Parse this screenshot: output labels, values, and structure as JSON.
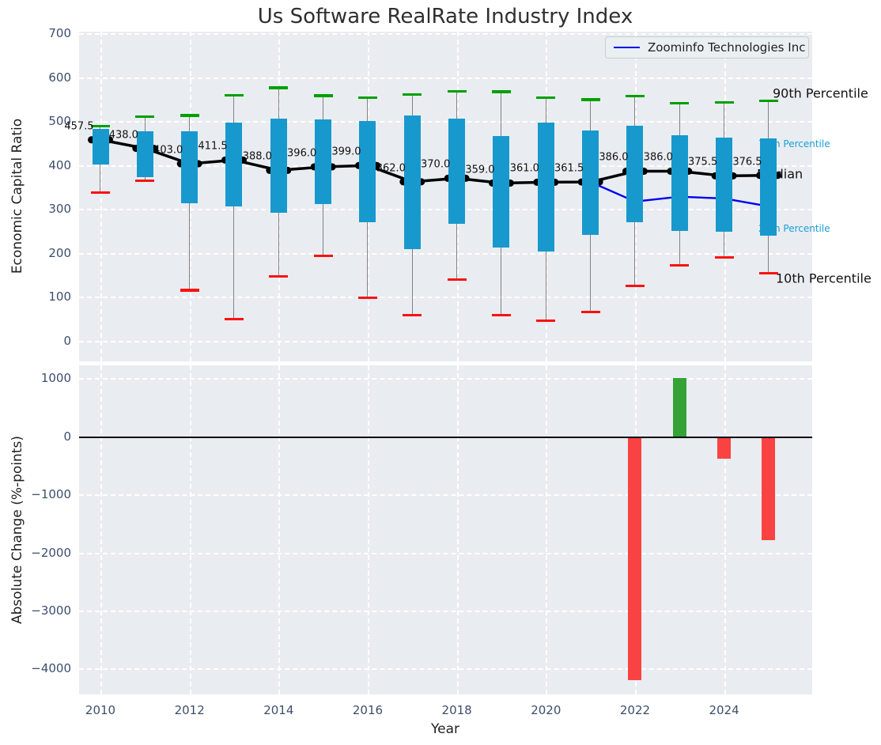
{
  "title": "Us Software RealRate Industry Index",
  "colors": {
    "plot_background": "#e9edf1",
    "gridline": "#ffffff",
    "tick_label": "#3d4e6c",
    "box_fill": "#1899cd",
    "p90_cap": "#00a000",
    "p10_cap": "#fb1111",
    "whisker": "#828282",
    "median_line": "#000000",
    "company_line": "#0000f0",
    "bar_positive": "#35a235",
    "bar_negative": "#f94342",
    "annotation_small": "#1a9fd6"
  },
  "legend": {
    "entries": [
      "Zoominfo Technologies Inc"
    ],
    "position": "upper right"
  },
  "chart_data": [
    {
      "type": "boxwhisker+line",
      "title": "Us Software RealRate Industry Index",
      "xlabel": "",
      "ylabel": "Economic Capital Ratio",
      "ylim": [
        0,
        700
      ],
      "yticks": [
        0,
        100,
        200,
        300,
        400,
        500,
        600,
        700
      ],
      "xticks": [
        2010,
        2012,
        2014,
        2016,
        2018,
        2020,
        2022,
        2024
      ],
      "grid": "dashed-white-on-gray",
      "years": [
        2010,
        2011,
        2012,
        2013,
        2014,
        2015,
        2016,
        2017,
        2018,
        2019,
        2020,
        2021,
        2022,
        2023,
        2024,
        2025
      ],
      "series": [
        {
          "name": "90th Percentile",
          "role": "whisker-high-cap",
          "values": [
            489,
            510,
            513,
            559,
            576,
            558,
            553,
            561,
            568,
            567,
            553,
            549,
            557,
            541,
            543,
            546
          ]
        },
        {
          "name": "75th Percentile",
          "role": "box-top",
          "values": [
            483,
            476,
            477,
            496,
            506,
            504,
            501,
            513,
            506,
            466,
            496,
            478,
            490,
            468,
            463,
            460
          ]
        },
        {
          "name": "Median",
          "role": "median",
          "values": [
            457.5,
            438.0,
            403.0,
            411.5,
            388.0,
            396.0,
            399.0,
            362.0,
            370.0,
            359.0,
            361.0,
            361.5,
            386.0,
            386.0,
            375.5,
            376.5
          ]
        },
        {
          "name": "25th Percentile",
          "role": "box-bottom",
          "values": [
            401,
            373,
            314,
            306,
            291,
            311,
            270,
            209,
            267,
            212,
            204,
            242,
            270,
            251,
            249,
            239
          ]
        },
        {
          "name": "10th Percentile",
          "role": "whisker-low-cap",
          "values": [
            338,
            364,
            115,
            49,
            147,
            193,
            98,
            58,
            140,
            58,
            46,
            65,
            125,
            172,
            190,
            154
          ]
        },
        {
          "name": "Zoominfo Technologies Inc",
          "role": "company-line",
          "x": [
            2021,
            2022,
            2023,
            2024,
            2025
          ],
          "values": [
            361.5,
            317,
            328,
            324,
            306
          ]
        }
      ],
      "median_labels": [
        "457.5",
        "438.0",
        "403.0",
        "411.5",
        "388.0",
        "396.0",
        "399.0",
        "362.0",
        "370.0",
        "359.0",
        "361.0",
        "361.5",
        "386.0",
        "386.0",
        "375.5",
        "376.5"
      ],
      "annotations": [
        "90th Percentile",
        "75th Percentile",
        "Median",
        "25th Percentile",
        "10th Percentile"
      ],
      "legend_entry": "Zoominfo Technologies Inc"
    },
    {
      "type": "bar",
      "xlabel": "Year",
      "ylabel": "Absolute Change (%-points)",
      "yticks": [
        1000,
        0,
        -1000,
        -2000,
        -3000,
        -4000
      ],
      "ytick_labels": [
        "1000",
        "0",
        "−1000",
        "−2000",
        "−3000",
        "−4000"
      ],
      "xticks": [
        2010,
        2012,
        2014,
        2016,
        2018,
        2020,
        2022,
        2024
      ],
      "categories": [
        2010,
        2011,
        2012,
        2013,
        2014,
        2015,
        2016,
        2017,
        2018,
        2019,
        2020,
        2021,
        2022,
        2023,
        2024,
        2025
      ],
      "values": [
        0,
        0,
        0,
        0,
        0,
        0,
        0,
        0,
        0,
        0,
        0,
        0,
        -4200,
        1000,
        -390,
        -1790
      ],
      "zero_line": true
    }
  ]
}
